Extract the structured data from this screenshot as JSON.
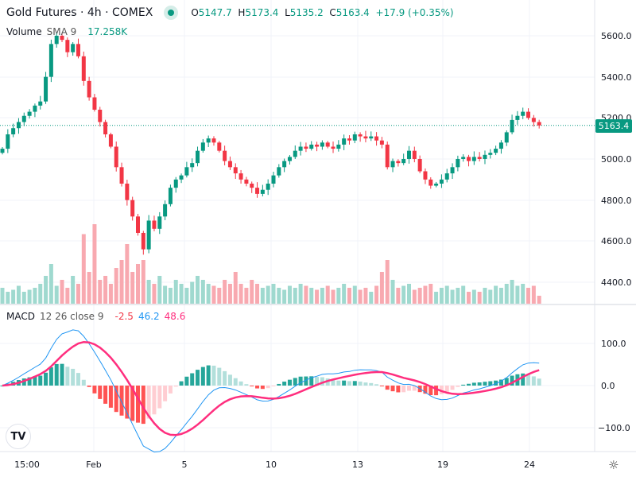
{
  "header": {
    "title": "Gold Futures · 4h · COMEX",
    "o_label": "O",
    "o": "5147.7",
    "h_label": "H",
    "h": "5173.4",
    "l_label": "L",
    "l": "5135.2",
    "c_label": "C",
    "c": "5163.4",
    "change": "+17.9 (+0.35%)"
  },
  "volume_legend": {
    "name": "Volume",
    "sma": "SMA 9",
    "value": "17.258K"
  },
  "macd_legend": {
    "name": "MACD",
    "params": "12 26 close 9",
    "hist": "-2.5",
    "macd": "46.2",
    "signal": "48.6"
  },
  "price_tag": "5163.4",
  "price_axis": [
    "5600.0",
    "5400.0",
    "5200.0",
    "5000.0",
    "4800.0",
    "4600.0",
    "4400.0"
  ],
  "macd_axis": [
    "100.0",
    "0.0",
    "−100.0"
  ],
  "time_axis": [
    "15:00",
    "Feb",
    "5",
    "10",
    "13",
    "19",
    "24"
  ],
  "logo": "TV",
  "colors": {
    "up": "#089981",
    "down": "#f23645",
    "macd": "#2962ff",
    "signal": "#ff2e7e"
  },
  "chart_data": {
    "type": "candlestick",
    "price_range": [
      4350,
      5650
    ],
    "close": [
      5050,
      5120,
      5150,
      5180,
      5210,
      5230,
      5260,
      5280,
      5400,
      5560,
      5600,
      5580,
      5520,
      5560,
      5500,
      5380,
      5300,
      5240,
      5180,
      5120,
      5060,
      4960,
      4880,
      4800,
      4720,
      4640,
      4560,
      4700,
      4660,
      4720,
      4780,
      4860,
      4900,
      4920,
      4960,
      4980,
      5040,
      5080,
      5100,
      5080,
      5040,
      4990,
      4960,
      4930,
      4900,
      4880,
      4860,
      4830,
      4850,
      4880,
      4920,
      4960,
      4990,
      5010,
      5040,
      5060,
      5050,
      5070,
      5060,
      5080,
      5060,
      5050,
      5070,
      5100,
      5090,
      5120,
      5110,
      5100,
      5110,
      5090,
      5070,
      4960,
      4990,
      4980,
      5000,
      5040,
      5000,
      4940,
      4900,
      4870,
      4880,
      4900,
      4930,
      4960,
      5000,
      5010,
      4990,
      5010,
      5000,
      5020,
      5030,
      5050,
      5080,
      5130,
      5190,
      5210,
      5230,
      5200,
      5180,
      5163.4
    ],
    "volume": [
      8,
      6,
      7,
      9,
      6,
      7,
      8,
      10,
      14,
      20,
      9,
      12,
      8,
      14,
      10,
      35,
      16,
      40,
      12,
      14,
      10,
      18,
      22,
      30,
      16,
      20,
      22,
      12,
      10,
      14,
      9,
      8,
      12,
      10,
      8,
      11,
      14,
      12,
      10,
      9,
      8,
      12,
      10,
      16,
      10,
      8,
      12,
      10,
      8,
      9,
      10,
      8,
      7,
      9,
      8,
      10,
      9,
      8,
      7,
      8,
      9,
      7,
      8,
      10,
      8,
      9,
      7,
      8,
      6,
      9,
      16,
      22,
      12,
      8,
      9,
      10,
      7,
      8,
      9,
      10,
      6,
      8,
      9,
      7,
      8,
      9,
      6,
      7,
      6,
      8,
      7,
      9,
      8,
      10,
      12,
      9,
      10,
      8,
      9,
      4
    ]
  }
}
